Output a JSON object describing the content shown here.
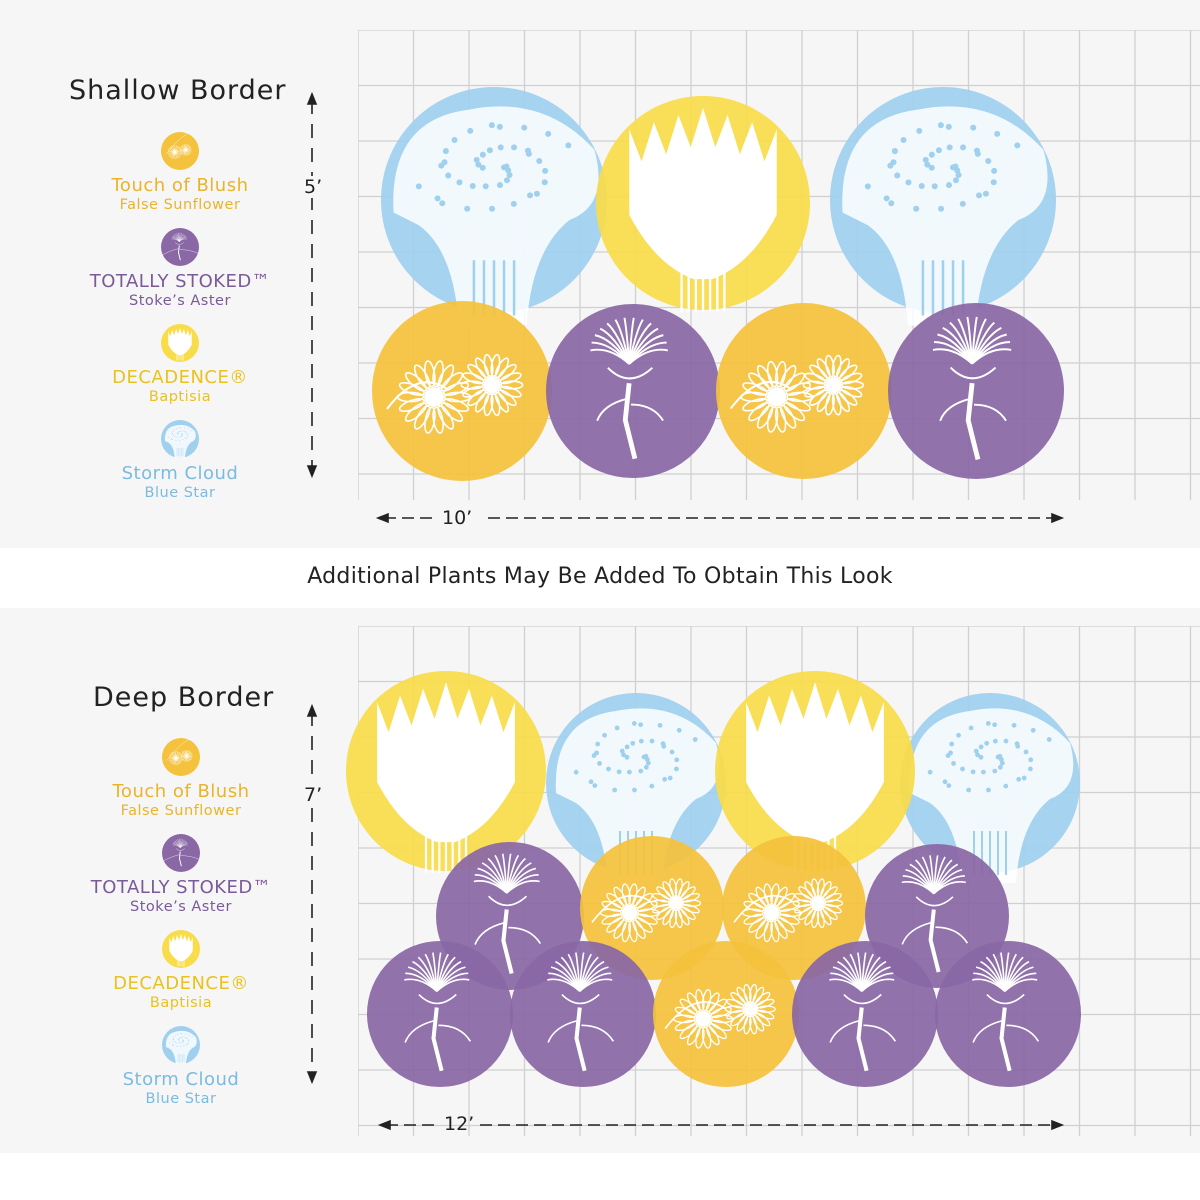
{
  "colors": {
    "sunflower": "#f4c23c",
    "aster": "#8a67a5",
    "baptisia": "#f9dc4a",
    "bluestar": "#9fd0ee",
    "grid": "#d0d0d0",
    "ink": "#222222"
  },
  "shallow": {
    "title": "Shallow Border",
    "height_label": "5’",
    "width_label": "10’"
  },
  "deep": {
    "title": "Deep Border",
    "height_label": "7’",
    "width_label": "12’"
  },
  "legend": [
    {
      "name": "Touch of Blush",
      "sub": "False Sunflower",
      "kind": "sunflower",
      "icon": "sunflower-icon"
    },
    {
      "name": "TOTALLY STOKED™",
      "sub": "Stoke’s Aster",
      "kind": "aster",
      "icon": "aster-icon"
    },
    {
      "name": "DECADENCE®",
      "sub": "Baptisia",
      "kind": "baptisia",
      "icon": "baptisia-icon"
    },
    {
      "name": "Storm Cloud",
      "sub": "Blue Star",
      "kind": "bluestar",
      "icon": "bluestar-icon"
    }
  ],
  "note": "Additional Plants May Be Added To Obtain This Look"
}
